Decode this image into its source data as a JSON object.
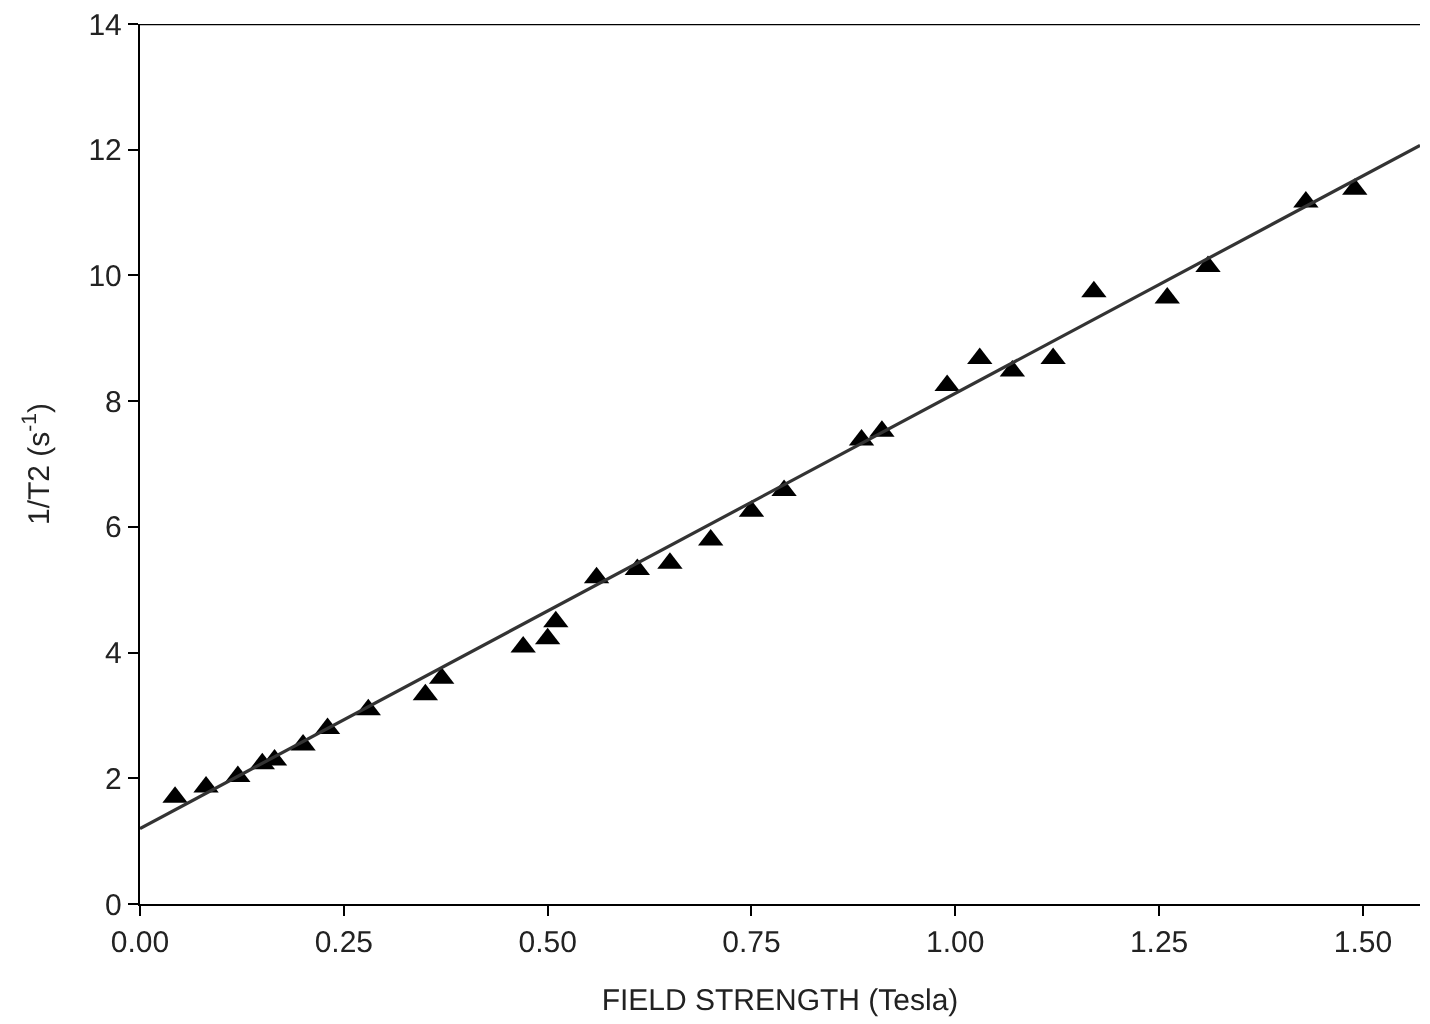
{
  "chart_data": {
    "type": "scatter",
    "xlabel": "FIELD STRENGTH (Tesla)",
    "ylabel": "1/T2 (s$^{-1}$)",
    "xlim": [
      0,
      1.57
    ],
    "ylim": [
      0,
      14
    ],
    "xticks": [
      {
        "value": 0,
        "label": "0.00"
      },
      0.25,
      {
        "value": 0.5,
        "label": "0.50"
      },
      0.75,
      {
        "value": 1,
        "label": "1.00"
      },
      1.25,
      {
        "value": 1.5,
        "label": "1.50"
      }
    ],
    "yticks": [
      0,
      2,
      4,
      6,
      8,
      10,
      12,
      14
    ],
    "marker": "triangle",
    "series": [
      {
        "color": "#000000",
        "x": [
          0.043,
          0.081,
          0.12,
          0.15,
          0.165,
          0.2,
          0.23,
          0.28,
          0.35,
          0.37,
          0.47,
          0.5,
          0.51,
          0.56,
          0.61,
          0.65,
          0.7,
          0.75,
          0.79,
          0.885,
          0.91,
          0.99,
          1.03,
          1.07,
          1.12,
          1.17,
          1.26,
          1.31,
          1.43,
          1.49
        ],
        "values": [
          1.7,
          1.86,
          2.03,
          2.23,
          2.29,
          2.53,
          2.79,
          3.09,
          3.33,
          3.59,
          4.09,
          4.22,
          4.49,
          5.19,
          5.32,
          5.42,
          5.79,
          6.25,
          6.58,
          7.38,
          7.52,
          8.25,
          8.68,
          8.48,
          8.68,
          9.74,
          9.64,
          10.14,
          11.17,
          11.37
        ]
      },
      {
        "type": "line",
        "color": "#333333",
        "marker": "none",
        "line_style": "solid",
        "x": [
          0,
          1.57
        ],
        "values": [
          1.2,
          12.07
        ]
      }
    ]
  }
}
